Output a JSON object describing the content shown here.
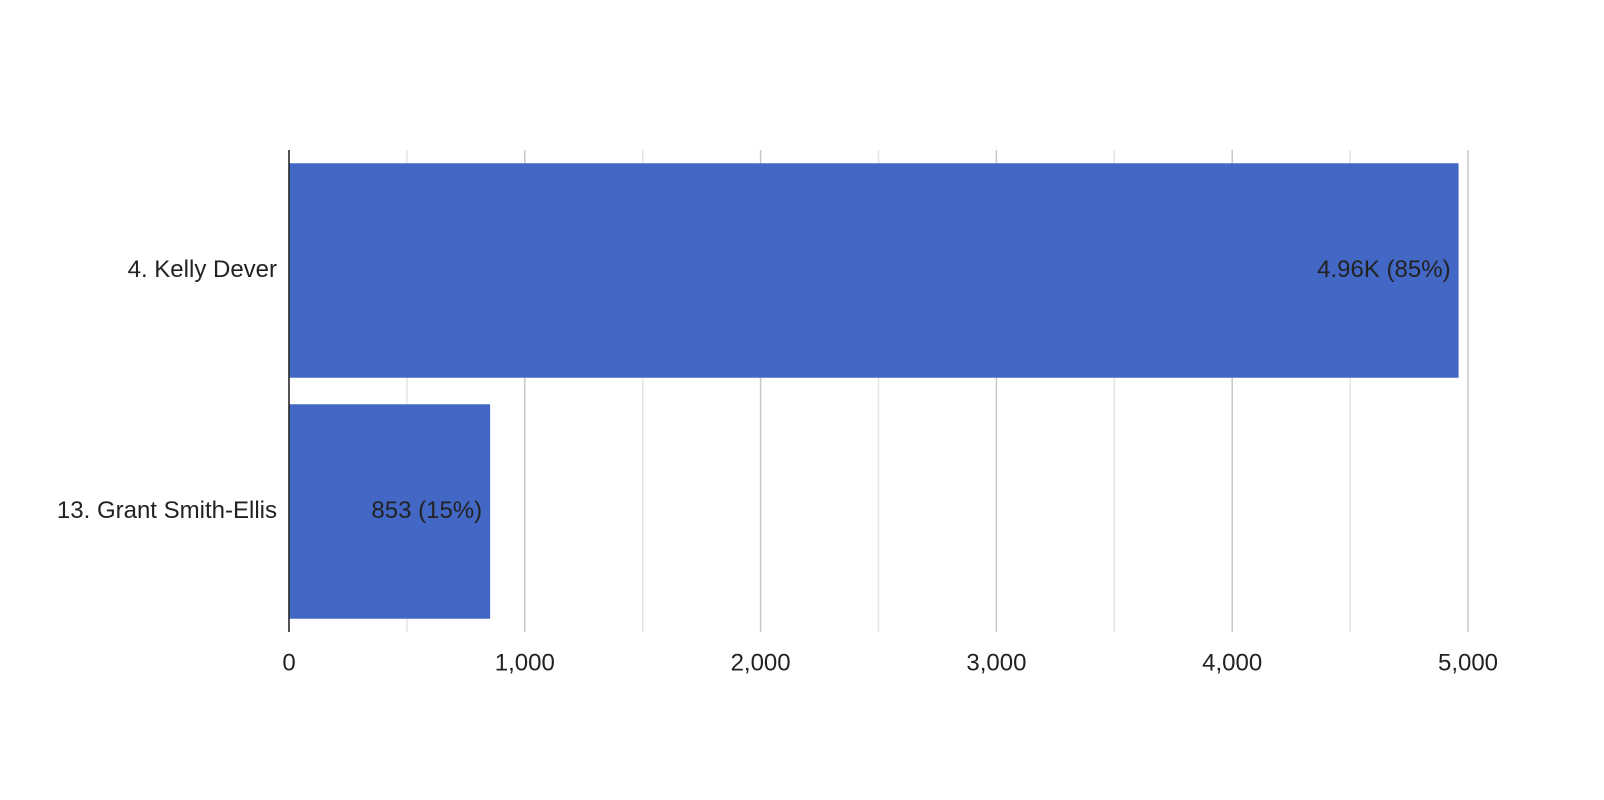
{
  "chart_data": {
    "type": "hbar",
    "categories": [
      "4. Kelly Dever",
      "13. Grant Smith-Ellis"
    ],
    "values": [
      4960,
      853
    ],
    "value_labels": [
      "4.96K (85%)",
      "853 (15%)"
    ],
    "color": "#4267c5",
    "xlim": [
      0,
      5000
    ],
    "xticks": [
      0,
      {
        "value": 1000,
        "label": "1,000"
      },
      {
        "value": 2000,
        "label": "2,000"
      },
      {
        "value": 3000,
        "label": "3,000"
      },
      {
        "value": 4000,
        "label": "4,000"
      },
      {
        "value": 5000,
        "label": "5,000"
      }
    ],
    "minor_grid": [
      500,
      1500,
      2500,
      3500,
      4500
    ],
    "grid": true
  }
}
